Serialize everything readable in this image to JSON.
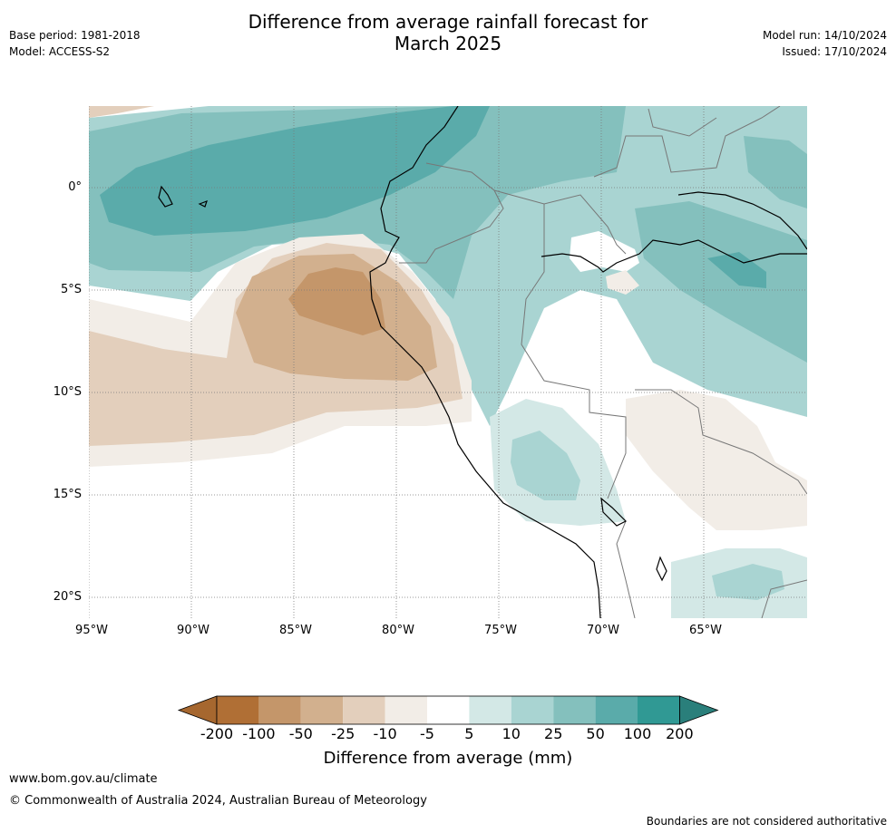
{
  "title": {
    "line1": "Difference from average rainfall forecast for",
    "line2": "March 2025"
  },
  "meta": {
    "base_period": "Base period: 1981-2018",
    "model": "Model: ACCESS-S2",
    "model_run": "Model run: 14/10/2024",
    "issued": "Issued: 17/10/2024"
  },
  "map": {
    "region": "Western South America and eastern Pacific",
    "lat_ticks": [
      "0°",
      "5°S",
      "10°S",
      "15°S",
      "20°S"
    ],
    "lon_ticks": [
      "95°W",
      "90°W",
      "85°W",
      "80°W",
      "75°W",
      "70°W",
      "65°W"
    ],
    "lat_values": [
      0,
      -5,
      -10,
      -15,
      -20
    ],
    "lon_values": [
      -95,
      -90,
      -85,
      -80,
      -75,
      -70,
      -65
    ],
    "gridlines": true
  },
  "colorbar": {
    "title": "Difference from average (mm)",
    "labels": [
      "-200",
      "-100",
      "-50",
      "-25",
      "-10",
      "-5",
      "5",
      "10",
      "25",
      "50",
      "100",
      "200"
    ],
    "colors": [
      "#a6672f",
      "#b06f35",
      "#c4966a",
      "#d2b08e",
      "#e3cfbc",
      "#f2ede7",
      "#ffffff",
      "#d3e8e6",
      "#a9d4d2",
      "#84c0bd",
      "#5aabaa",
      "#309994",
      "#2a7f7b"
    ]
  },
  "footer": {
    "url": "www.bom.gov.au/climate",
    "copyright": "© Commonwealth of Australia 2024, Australian Bureau of Meteorology",
    "disclaimer": "Boundaries are not considered authoritative"
  }
}
